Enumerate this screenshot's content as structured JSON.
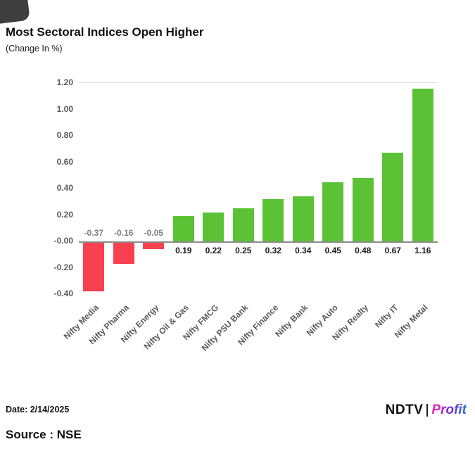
{
  "title": "Most Sectoral Indices Open Higher",
  "subtitle": "(Change In %)",
  "footer": {
    "date_label": "Date: 2/14/2025",
    "source_label": "Source : NSE",
    "logo_ndtv": "NDTV",
    "logo_profit": "Profit"
  },
  "colors": {
    "positive": "#5bc236",
    "negative": "#f8404e",
    "axis_text": "#595959",
    "label_positive": "#1a1a1a",
    "label_negative": "#7f7f7f"
  },
  "chart_data": {
    "type": "bar",
    "title": "Most Sectoral Indices Open Higher",
    "subtitle": "(Change In %)",
    "xlabel": "",
    "ylabel": "Change In %",
    "ylim": [
      -0.4,
      1.2
    ],
    "grid": false,
    "legend": "none",
    "categories": [
      "Nifty Media",
      "Nifty Pharma",
      "Nifty Energy",
      "Nifty Oil & Gas",
      "Nifty FMCG",
      "Nifty PSU Bank",
      "Nifty Finance",
      "Nifty Bank",
      "Nifty Auto",
      "Nifty Realty",
      "Nifty IT",
      "Nifty Metal"
    ],
    "values": [
      -0.37,
      -0.16,
      -0.05,
      0.19,
      0.22,
      0.25,
      0.32,
      0.34,
      0.45,
      0.48,
      0.67,
      1.16
    ],
    "value_labels": [
      "-0.37",
      "-0.16",
      "-0.05",
      "0.19",
      "0.22",
      "0.25",
      "0.32",
      "0.34",
      "0.45",
      "0.48",
      "0.67",
      "1.16"
    ],
    "yticks": [
      1.2,
      1.0,
      0.8,
      0.6,
      0.4,
      0.2,
      0.0,
      -0.2,
      -0.4
    ],
    "ytick_labels": [
      "1.20",
      "1.00",
      "0.80",
      "0.60",
      "0.40",
      "0.20",
      "-0.00",
      "-0.20",
      "-0.40"
    ]
  }
}
